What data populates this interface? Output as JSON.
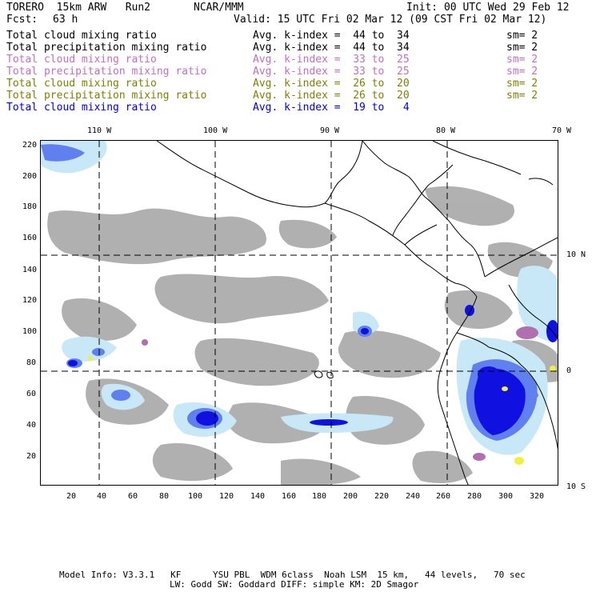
{
  "header": {
    "model": "TORERO  15km ARW   Run2",
    "org": "NCAR/MMM",
    "init": "Init: 00 UTC Wed 29 Feb 12",
    "fcst_label": "Fcst:",
    "fcst_value": "63 h",
    "valid": "Valid: 15 UTC Fri 02 Mar 12 (09 CST Fri 02 Mar 12)"
  },
  "legend": [
    {
      "name": "Total cloud mixing ratio",
      "avg": "Avg. k-index =  44 to  34",
      "sm": "sm= 2",
      "color": "#000000"
    },
    {
      "name": "Total precipitation mixing ratio",
      "avg": "Avg. k-index =  44 to  34",
      "sm": "sm= 2",
      "color": "#000000"
    },
    {
      "name": "Total cloud mixing ratio",
      "avg": "Avg. k-index =  33 to  25",
      "sm": "sm= 2",
      "color": "#c070c0"
    },
    {
      "name": "Total precipitation mixing ratio",
      "avg": "Avg. k-index =  33 to  25",
      "sm": "sm= 2",
      "color": "#c070c0"
    },
    {
      "name": "Total cloud mixing ratio",
      "avg": "Avg. k-index =  26 to  20",
      "sm": "sm= 2",
      "color": "#808000"
    },
    {
      "name": "Total precipitation mixing ratio",
      "avg": "Avg. k-index =  26 to  20",
      "sm": "sm= 2",
      "color": "#808000"
    },
    {
      "name": "Total cloud mixing ratio",
      "avg": "Avg. k-index =  19 to   4",
      "sm": "",
      "color": "#0000e0"
    }
  ],
  "axes": {
    "top_ticks": [
      "110 W",
      "100 W",
      "90 W",
      "80 W",
      "70 W"
    ],
    "right_ticks": [
      "10 N",
      "0",
      "10 S"
    ],
    "left_ticks": [
      "220",
      "200",
      "180",
      "160",
      "140",
      "120",
      "100",
      "80",
      "60",
      "40",
      "20"
    ],
    "bottom_ticks": [
      "20",
      "40",
      "60",
      "80",
      "100",
      "120",
      "140",
      "160",
      "180",
      "200",
      "220",
      "240",
      "260",
      "280",
      "300",
      "320"
    ]
  },
  "footer": {
    "line1": "Model Info: V3.3.1   KF      YSU PBL  WDM 6class  Noah LSM  15 km,   44 levels,   70 sec",
    "line2": "LW: Godd SW: Goddard DIFF: simple KM: 2D Smagor"
  },
  "colors": {
    "cloud_gray": "#a8a8a8",
    "light_blue": "#c8e8f8",
    "mid_blue": "#6080f0",
    "deep_blue": "#1010e0",
    "violet": "#b070b0",
    "yellow": "#f0f040"
  }
}
